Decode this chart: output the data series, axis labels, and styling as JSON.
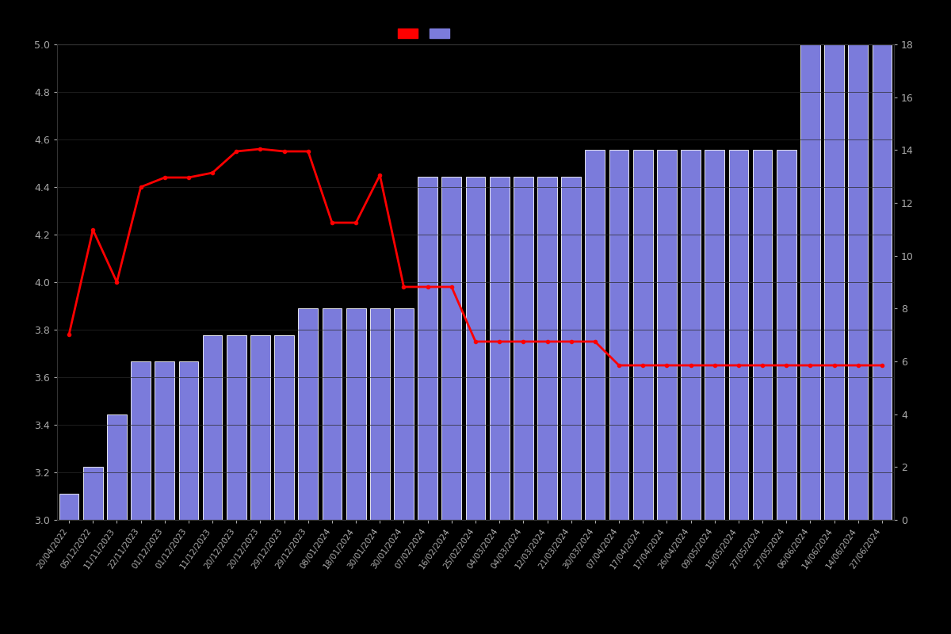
{
  "x_labels": [
    "20/04/2022",
    "05/12/2022",
    "11/11/2023",
    "22/11/2023",
    "01/12/2023",
    "01/12/2023",
    "11/12/2023",
    "20/12/2023",
    "20/12/2023",
    "29/12/2023",
    "29/12/2023",
    "08/01/2024",
    "18/01/2024",
    "30/01/2024",
    "30/01/2024",
    "07/02/2024",
    "16/02/2024",
    "25/02/2024",
    "04/03/2024",
    "04/03/2024",
    "12/03/2024",
    "21/03/2024",
    "30/03/2024",
    "07/04/2024",
    "17/04/2024",
    "17/04/2024",
    "26/04/2024",
    "09/05/2024",
    "15/05/2024",
    "27/05/2024",
    "27/05/2024",
    "06/06/2024",
    "14/06/2024",
    "14/06/2024",
    "27/06/2024"
  ],
  "bar_heights": [
    1,
    2,
    4,
    6,
    6,
    6,
    7,
    7,
    7,
    7,
    8,
    8,
    8,
    8,
    8,
    13,
    13,
    13,
    13,
    13,
    13,
    13,
    14,
    14,
    14,
    14,
    14,
    14,
    14,
    14,
    14,
    18,
    18,
    18,
    18
  ],
  "red_line_y": [
    3.78,
    4.22,
    4.0,
    4.4,
    4.44,
    4.44,
    4.46,
    4.55,
    4.56,
    4.55,
    4.55,
    4.25,
    4.25,
    4.45,
    3.98,
    3.98,
    3.98,
    3.75,
    3.75,
    3.75,
    3.75,
    3.75,
    3.75,
    3.65,
    3.65,
    3.65,
    3.65,
    3.65,
    3.65,
    3.65,
    3.65,
    3.65,
    3.65,
    3.65,
    3.65
  ],
  "bar_color": "#7b7bdb",
  "bar_edge_color": "#ffffff",
  "line_color": "#ff0000",
  "background_color": "#000000",
  "text_color": "#aaaaaa",
  "ylim_left": [
    3.0,
    5.0
  ],
  "ylim_right": [
    0,
    18
  ],
  "yticks_left": [
    3.0,
    3.2,
    3.4,
    3.6,
    3.8,
    4.0,
    4.2,
    4.4,
    4.6,
    4.8,
    5.0
  ],
  "yticks_right": [
    0,
    2,
    4,
    6,
    8,
    10,
    12,
    14,
    16,
    18
  ]
}
